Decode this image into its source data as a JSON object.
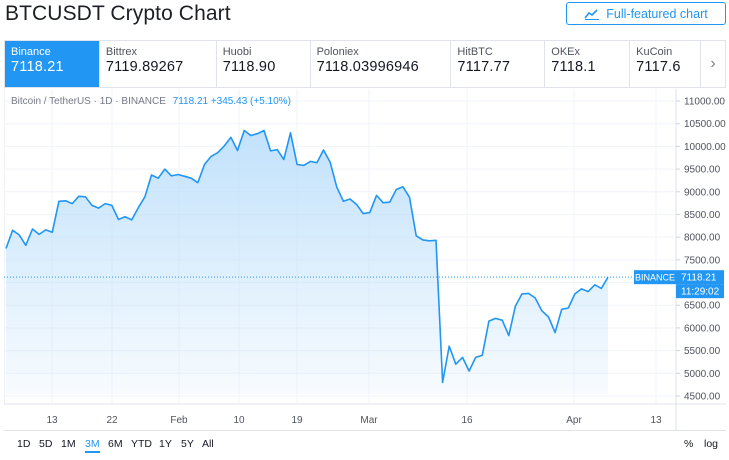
{
  "header": {
    "title": "BTCUSDT Crypto Chart",
    "full_featured_label": "Full-featured chart"
  },
  "exchanges": [
    {
      "name": "Binance",
      "price": "7118.21",
      "active": true
    },
    {
      "name": "Bittrex",
      "price": "7119.89267"
    },
    {
      "name": "Huobi",
      "price": "7118.90"
    },
    {
      "name": "Poloniex",
      "price": "7118.03996946"
    },
    {
      "name": "HitBTC",
      "price": "7117.77"
    },
    {
      "name": "OKEx",
      "price": "7118.1"
    },
    {
      "name": "KuCoin",
      "price": "7117.6"
    }
  ],
  "legend": {
    "symbol": "Bitcoin / TetherUS · 1D · BINANCE",
    "value": "7118.21 +345.43 (+5.10%)"
  },
  "colors": {
    "accent": "#2196f3",
    "line": "#2196f3",
    "fill_top": "#bfe0fb"
  },
  "price_label": {
    "exchange": "BINANCE",
    "price": "7118.21",
    "countdown": "11:29:02"
  },
  "chart_data": {
    "type": "area",
    "y_axis": {
      "range": [
        4500,
        11000
      ],
      "ticks": [
        "11000.00",
        "10500.00",
        "10000.00",
        "9500.00",
        "9000.00",
        "8500.00",
        "8000.00",
        "7500.00",
        "7000.00",
        "6500.00",
        "6000.00",
        "5500.00",
        "5000.00",
        "4500.00"
      ]
    },
    "x_axis": {
      "ticks": [
        "13",
        "22",
        "Feb",
        "10",
        "19",
        "Mar",
        "16",
        "Apr",
        "13"
      ]
    },
    "last_price": 7118.21,
    "values": [
      7750,
      8150,
      8050,
      7820,
      8180,
      8060,
      8160,
      8110,
      8790,
      8800,
      8740,
      8900,
      8890,
      8700,
      8640,
      8740,
      8700,
      8390,
      8450,
      8380,
      8650,
      8890,
      9370,
      9300,
      9500,
      9350,
      9380,
      9340,
      9300,
      9200,
      9600,
      9780,
      9860,
      10010,
      10200,
      9910,
      10350,
      10240,
      10280,
      10350,
      9900,
      9930,
      9710,
      10300,
      9600,
      9580,
      9670,
      9640,
      9920,
      9650,
      9100,
      8790,
      8840,
      8720,
      8520,
      8540,
      8920,
      8760,
      8770,
      9050,
      9110,
      8880,
      8030,
      7940,
      7920,
      7930,
      4800,
      5600,
      5200,
      5350,
      5050,
      5350,
      5400,
      6150,
      6210,
      6170,
      5830,
      6480,
      6750,
      6760,
      6660,
      6380,
      6240,
      5900,
      6410,
      6440,
      6750,
      6860,
      6800,
      6950,
      6870,
      7118
    ]
  },
  "range_buttons": [
    "1D",
    "5D",
    "1M",
    "3M",
    "6M",
    "YTD",
    "1Y",
    "5Y",
    "All"
  ],
  "active_range": "3M",
  "scale_options": [
    "%",
    "log"
  ]
}
